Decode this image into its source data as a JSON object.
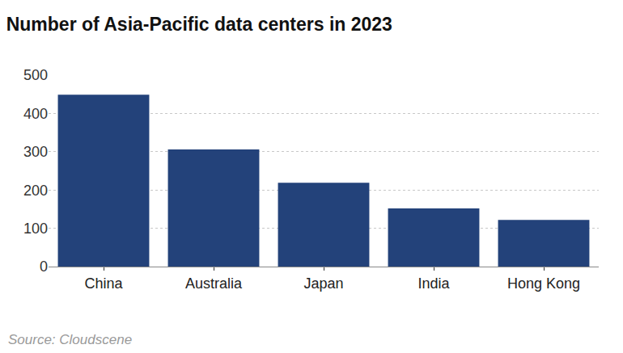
{
  "chart_data": {
    "type": "bar",
    "title": "Number of Asia-Pacific data centers in 2023",
    "categories": [
      "China",
      "Australia",
      "Japan",
      "India",
      "Hong Kong"
    ],
    "values": [
      449,
      306,
      219,
      152,
      122
    ],
    "color": "#23427a",
    "ylim": [
      0,
      500
    ],
    "yticks": [
      0,
      100,
      200,
      300,
      400,
      500
    ],
    "grid": true,
    "annotations": [
      "Source: Cloudscene"
    ]
  }
}
